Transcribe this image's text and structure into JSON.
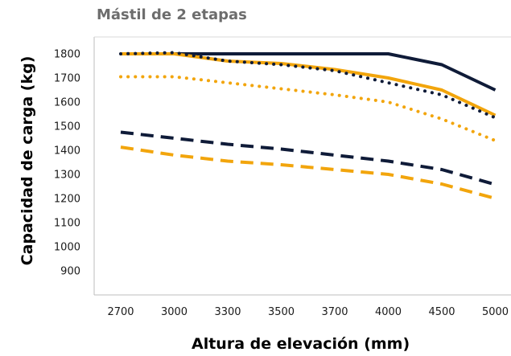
{
  "chart_data": {
    "type": "line",
    "title": "Mástil de 2 etapas",
    "xlabel": "Altura de elevación (mm)",
    "ylabel": "Capacidad de carga (kg)",
    "categories": [
      "2700",
      "3000",
      "3300",
      "3500",
      "3700",
      "4000",
      "4500",
      "5000"
    ],
    "y_ticks": [
      900,
      1000,
      1100,
      1200,
      1300,
      1400,
      1500,
      1600,
      1700,
      1800
    ],
    "ylim": [
      800,
      1870
    ],
    "grid": false,
    "legend": "none",
    "series": [
      {
        "color": "#0f1b38",
        "style": "solid",
        "values": [
          1800,
          1800,
          1800,
          1800,
          1800,
          1800,
          1755,
          1650
        ]
      },
      {
        "color": "#f2a50c",
        "style": "solid",
        "values": [
          1800,
          1800,
          1770,
          1760,
          1735,
          1700,
          1650,
          1545
        ]
      },
      {
        "color": "#0f1b38",
        "style": "dotted",
        "values": [
          1800,
          1805,
          1770,
          1755,
          1730,
          1680,
          1630,
          1535
        ]
      },
      {
        "color": "#f2a50c",
        "style": "dotted",
        "values": [
          1705,
          1705,
          1680,
          1655,
          1630,
          1600,
          1530,
          1440
        ]
      },
      {
        "color": "#0f1b38",
        "style": "dashed",
        "values": [
          1475,
          1450,
          1425,
          1405,
          1380,
          1355,
          1320,
          1258
        ]
      },
      {
        "color": "#f2a50c",
        "style": "dashed",
        "values": [
          1413,
          1380,
          1355,
          1340,
          1320,
          1300,
          1260,
          1200
        ]
      }
    ]
  }
}
